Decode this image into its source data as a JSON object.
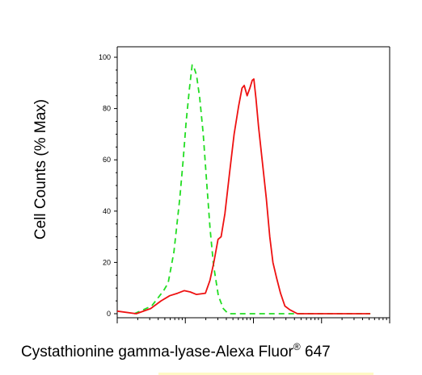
{
  "chart_data": {
    "type": "line",
    "xlabel": "Cystathionine gamma-lyase-Alexa Fluor",
    "xlabel_superscript": "®",
    "xlabel_suffix": " 647",
    "ylabel": "Cell Counts (% Max)",
    "ylim": [
      0,
      100
    ],
    "y_ticks": [
      0,
      20,
      40,
      60,
      80,
      100
    ],
    "x_scale": "log",
    "xlim": [
      1,
      10000
    ],
    "grid": false,
    "series": [
      {
        "style": "dashed",
        "color": "#22dd22",
        "points": [
          [
            1.78,
            0
          ],
          [
            3.2,
            3
          ],
          [
            4.8,
            9
          ],
          [
            5.6,
            12
          ],
          [
            6.8,
            24
          ],
          [
            8.3,
            45
          ],
          [
            9.3,
            60
          ],
          [
            10.3,
            75
          ],
          [
            11.5,
            88
          ],
          [
            12.6,
            97
          ],
          [
            13.4,
            96
          ],
          [
            14.6,
            93
          ],
          [
            16.3,
            84
          ],
          [
            18.3,
            70
          ],
          [
            20.6,
            51
          ],
          [
            23.1,
            33
          ],
          [
            25.9,
            19
          ],
          [
            30.5,
            7
          ],
          [
            36.1,
            2
          ],
          [
            42.8,
            0
          ],
          [
            100,
            0
          ],
          [
            700,
            0
          ],
          [
            5200,
            0
          ]
        ]
      },
      {
        "style": "solid",
        "color": "#ee1111",
        "points": [
          [
            1.0,
            1
          ],
          [
            1.9,
            0
          ],
          [
            3.1,
            2
          ],
          [
            4.4,
            5
          ],
          [
            5.9,
            7
          ],
          [
            7.7,
            8
          ],
          [
            9.6,
            9
          ],
          [
            11.8,
            8.5
          ],
          [
            14.5,
            7.5
          ],
          [
            19.7,
            8
          ],
          [
            23.0,
            13
          ],
          [
            26.2,
            20
          ],
          [
            30.2,
            29
          ],
          [
            33.5,
            30
          ],
          [
            38.1,
            39
          ],
          [
            44.7,
            55
          ],
          [
            52.1,
            70
          ],
          [
            60.7,
            81
          ],
          [
            68.0,
            88
          ],
          [
            73.3,
            89
          ],
          [
            80.8,
            85
          ],
          [
            88.6,
            88
          ],
          [
            96.1,
            91
          ],
          [
            101.5,
            91.5
          ],
          [
            108.9,
            84
          ],
          [
            118.8,
            73
          ],
          [
            135.5,
            59
          ],
          [
            154.4,
            45
          ],
          [
            173.6,
            30
          ],
          [
            193.4,
            20
          ],
          [
            218.7,
            14
          ],
          [
            249.6,
            8
          ],
          [
            289.4,
            3
          ],
          [
            342.6,
            1.5
          ],
          [
            441.7,
            0
          ],
          [
            5200,
            0
          ]
        ]
      }
    ]
  }
}
